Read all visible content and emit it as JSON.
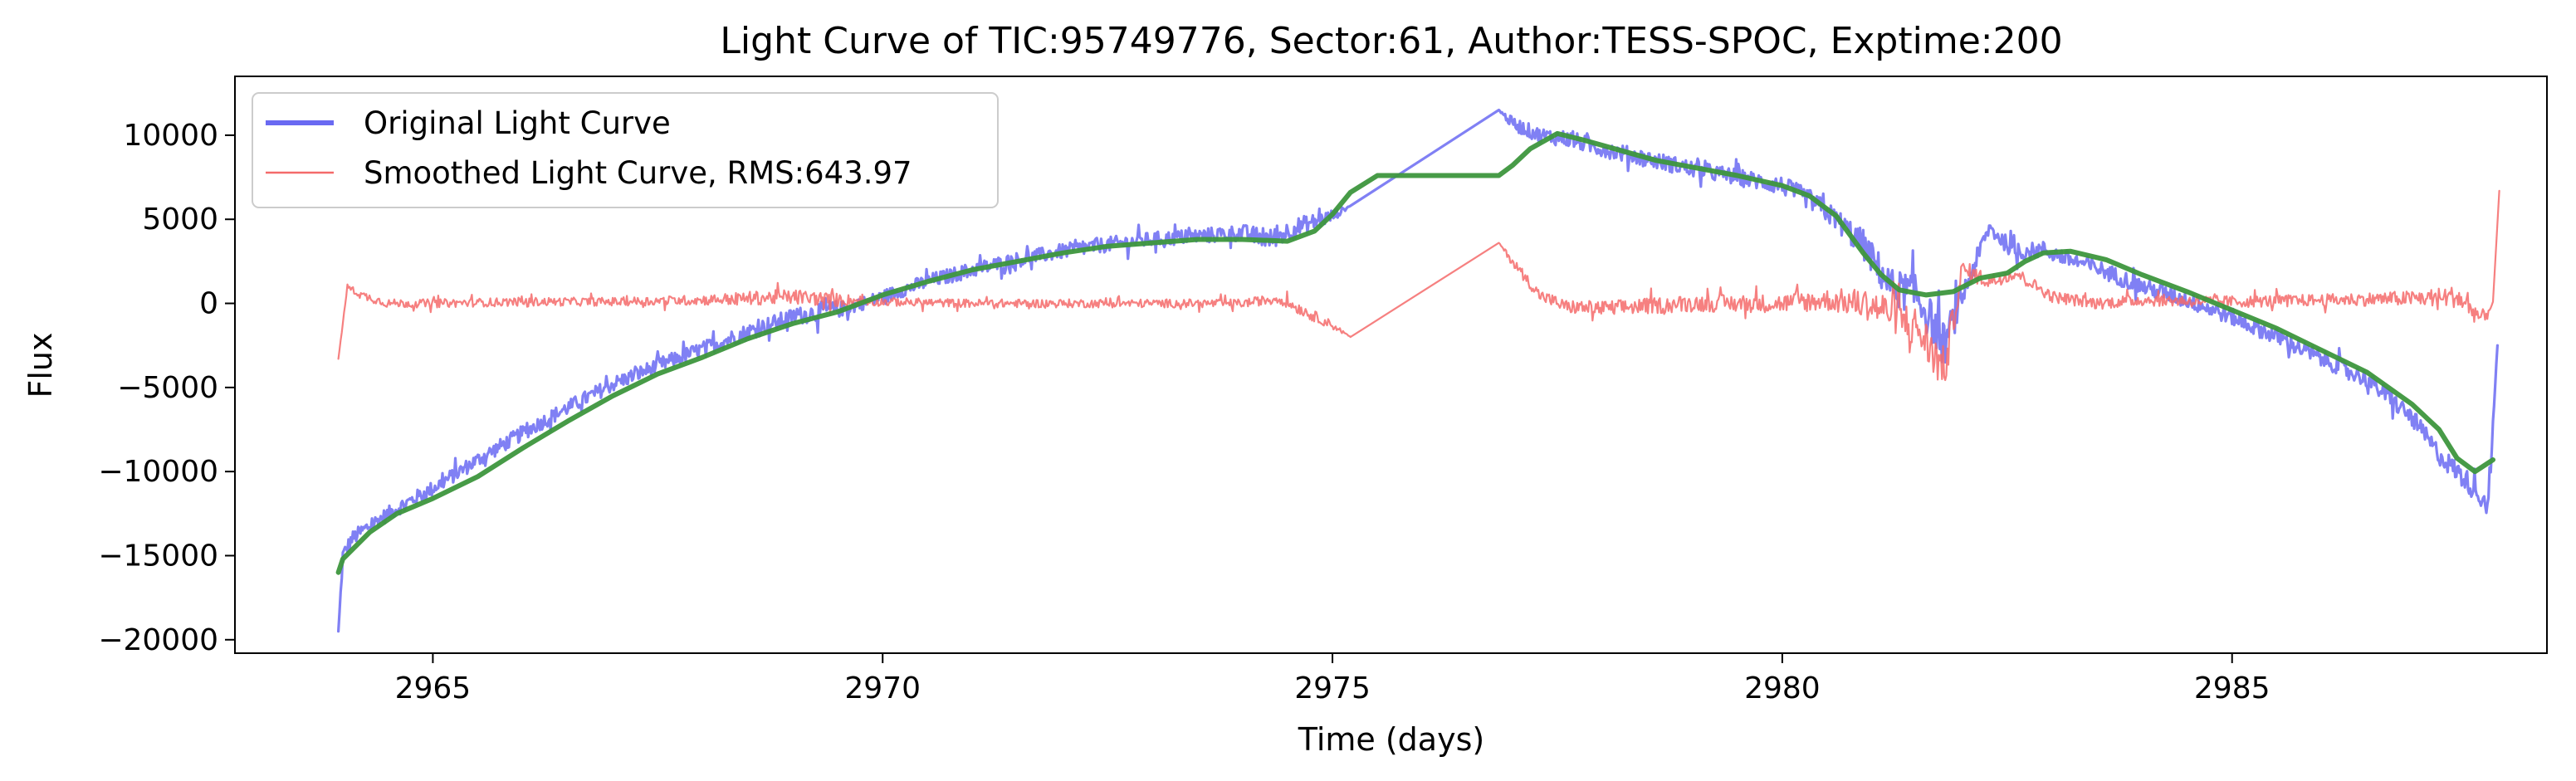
{
  "chart_data": {
    "type": "line",
    "title": "Light Curve of TIC:95749776, Sector:61, Author:TESS-SPOC, Exptime:200",
    "xlabel": "Time (days)",
    "ylabel": "Flux",
    "xlim": [
      2962.8,
      2988.5
    ],
    "ylim": [
      -20800,
      13500
    ],
    "xticks": [
      2965,
      2970,
      2975,
      2980,
      2985
    ],
    "yticks": [
      -20000,
      -15000,
      -10000,
      -5000,
      0,
      5000,
      10000
    ],
    "xtick_labels": [
      "2965",
      "2970",
      "2975",
      "2980",
      "2985"
    ],
    "ytick_labels": [
      "−20000",
      "−15000",
      "−10000",
      "−5000",
      "0",
      "5000",
      "10000"
    ],
    "grid": false,
    "legend_position": "top-left",
    "series": [
      {
        "name": "Original Light Curve",
        "color": "#6a6af2",
        "style": "noisy",
        "x": [
          2963.95,
          2964.0,
          2964.1,
          2964.3,
          2964.6,
          2965.0,
          2965.5,
          2966.0,
          2966.5,
          2967.0,
          2967.5,
          2968.0,
          2968.5,
          2969.0,
          2969.4,
          2969.6,
          2970.0,
          2970.5,
          2971.0,
          2971.5,
          2972.0,
          2972.5,
          2973.0,
          2973.5,
          2974.0,
          2974.3,
          2974.6,
          2975.0,
          2975.2,
          2976.85,
          2977.0,
          2977.3,
          2977.6,
          2978.0,
          2978.5,
          2979.0,
          2979.5,
          2980.0,
          2980.3,
          2980.6,
          2980.9,
          2981.2,
          2981.5,
          2981.8,
          2982.0,
          2982.3,
          2982.6,
          2982.9,
          2983.2,
          2983.5,
          2984.0,
          2984.5,
          2985.0,
          2985.5,
          2986.0,
          2986.5,
          2987.0,
          2987.3,
          2987.6,
          2987.85,
          2987.95
        ],
        "values": [
          -19500,
          -15000,
          -14000,
          -13200,
          -12200,
          -11000,
          -9300,
          -7700,
          -6200,
          -4800,
          -3700,
          -2700,
          -1700,
          -800,
          -400,
          -300,
          400,
          1300,
          2000,
          2600,
          3100,
          3500,
          3800,
          4000,
          4200,
          3800,
          4500,
          5200,
          5800,
          11500,
          10700,
          10000,
          9800,
          9200,
          8600,
          8000,
          7500,
          7000,
          6200,
          5000,
          3500,
          1000,
          500,
          -2500,
          400,
          4500,
          3000,
          3200,
          2600,
          2100,
          1000,
          200,
          -800,
          -2000,
          -3300,
          -4500,
          -6800,
          -9000,
          -10500,
          -12000,
          -2500
        ],
        "noise": [
          0,
          900,
          900,
          900,
          900,
          900,
          900,
          900,
          900,
          900,
          900,
          900,
          1000,
          1000,
          1200,
          800,
          800,
          900,
          900,
          900,
          900,
          900,
          900,
          900,
          1000,
          1200,
          1200,
          800,
          0,
          0,
          800,
          900,
          1000,
          1000,
          1000,
          1000,
          1000,
          1100,
          1200,
          1300,
          1800,
          2200,
          2400,
          2600,
          1500,
          1000,
          1000,
          1000,
          1000,
          1000,
          1000,
          1000,
          1000,
          1000,
          1000,
          1000,
          1100,
          1200,
          1300,
          1300,
          0
        ]
      },
      {
        "name": "Smoothed Light Curve, RMS:643.97",
        "color": "#f46a6a",
        "style": "noisy",
        "x": [
          2963.95,
          2964.05,
          2964.2,
          2964.5,
          2965.0,
          2966.0,
          2967.0,
          2968.0,
          2968.5,
          2969.0,
          2969.5,
          2970.0,
          2971.0,
          2972.0,
          2973.0,
          2974.0,
          2974.4,
          2974.7,
          2975.0,
          2975.2,
          2976.85,
          2977.0,
          2977.3,
          2977.6,
          2978.0,
          2979.0,
          2980.0,
          2980.5,
          2980.9,
          2981.2,
          2981.5,
          2981.8,
          2982.0,
          2982.3,
          2982.6,
          2983.0,
          2983.5,
          2984.0,
          2985.0,
          2986.0,
          2987.0,
          2987.5,
          2987.8,
          2987.9,
          2987.97
        ],
        "values": [
          -3300,
          1000,
          500,
          0,
          0,
          100,
          100,
          200,
          300,
          400,
          200,
          100,
          0,
          0,
          0,
          0,
          300,
          -500,
          -1300,
          -2000,
          3600,
          2500,
          500,
          -200,
          -300,
          0,
          0,
          200,
          0,
          -500,
          -1500,
          -4000,
          2000,
          1300,
          1800,
          400,
          0,
          200,
          100,
          200,
          300,
          400,
          -1000,
          100,
          6700
        ],
        "noise": [
          0,
          300,
          500,
          500,
          500,
          500,
          500,
          600,
          800,
          900,
          800,
          500,
          500,
          500,
          500,
          500,
          600,
          700,
          500,
          0,
          0,
          600,
          700,
          800,
          900,
          1000,
          1100,
          1300,
          1800,
          2200,
          2600,
          2800,
          1200,
          900,
          700,
          700,
          700,
          700,
          700,
          700,
          900,
          1300,
          1200,
          0,
          0
        ]
      },
      {
        "name": "",
        "color": "#3d963d",
        "style": "smooth",
        "x": [
          2963.95,
          2964.0,
          2964.3,
          2964.6,
          2965.0,
          2965.5,
          2966.0,
          2966.5,
          2967.0,
          2967.5,
          2968.0,
          2968.5,
          2969.0,
          2969.5,
          2970.0,
          2970.5,
          2971.0,
          2971.5,
          2972.0,
          2972.5,
          2973.0,
          2973.5,
          2974.0,
          2974.5,
          2974.8,
          2975.0,
          2975.2,
          2975.5,
          2976.0,
          2976.85,
          2977.0,
          2977.2,
          2977.5,
          2977.8,
          2978.2,
          2978.6,
          2979.0,
          2979.5,
          2980.0,
          2980.3,
          2980.6,
          2980.9,
          2981.1,
          2981.3,
          2981.6,
          2981.9,
          2982.2,
          2982.5,
          2982.7,
          2982.9,
          2983.2,
          2983.6,
          2984.0,
          2984.5,
          2985.0,
          2985.5,
          2986.0,
          2986.5,
          2987.0,
          2987.3,
          2987.5,
          2987.7,
          2987.9
        ],
        "values": [
          -16000,
          -15200,
          -13600,
          -12500,
          -11600,
          -10300,
          -8600,
          -7000,
          -5500,
          -4200,
          -3200,
          -2100,
          -1200,
          -500,
          500,
          1300,
          2000,
          2500,
          3000,
          3400,
          3600,
          3800,
          3800,
          3700,
          4300,
          5300,
          6600,
          7600,
          7600,
          7600,
          8200,
          9200,
          10100,
          9700,
          9100,
          8500,
          8100,
          7600,
          7000,
          6400,
          5200,
          3000,
          1700,
          800,
          500,
          700,
          1500,
          1800,
          2500,
          3000,
          3100,
          2600,
          1700,
          700,
          -400,
          -1500,
          -2800,
          -4100,
          -6000,
          -7500,
          -9200,
          -10000,
          -9300
        ]
      }
    ]
  }
}
